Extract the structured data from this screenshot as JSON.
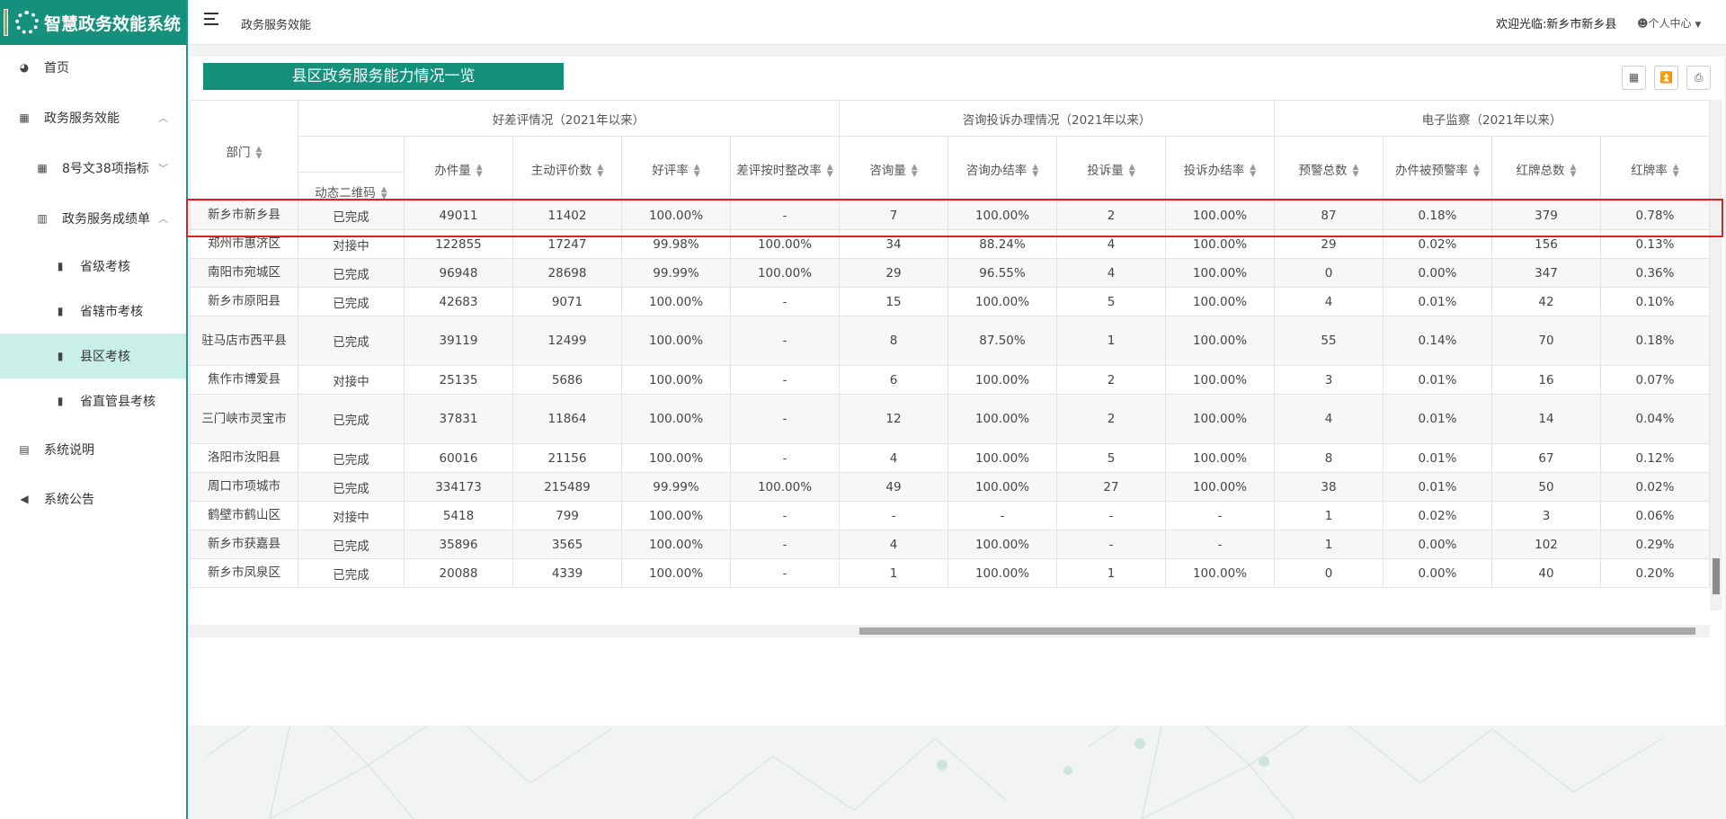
{
  "app": {
    "title": "智慧政务效能系统"
  },
  "topbar": {
    "breadcrumb": "政务服务效能",
    "welcome": "欢迎光临:新乡市新乡县",
    "user_center": "个人中心"
  },
  "sidebar": {
    "items": [
      {
        "label": "首页",
        "icon": "dashboard-icon"
      },
      {
        "label": "政务服务效能",
        "icon": "calendar-icon"
      },
      {
        "label": "8号文38项指标",
        "icon": "calendar-icon"
      },
      {
        "label": "政务服务成绩单",
        "icon": "chart-icon"
      },
      {
        "label": "省级考核",
        "icon": "bar-chart-icon"
      },
      {
        "label": "省辖市考核",
        "icon": "bar-chart-icon"
      },
      {
        "label": "县区考核",
        "icon": "bar-chart-icon"
      },
      {
        "label": "省直管县考核",
        "icon": "bar-chart-icon"
      },
      {
        "label": "系统说明",
        "icon": "document-icon"
      },
      {
        "label": "系统公告",
        "icon": "volume-icon"
      }
    ]
  },
  "panel": {
    "title": "县区政务服务能力情况一览"
  },
  "table": {
    "groups": [
      "好差评情况（2021年以来）",
      "咨询投诉办理情况（2021年以来）",
      "电子监察（2021年以来）"
    ],
    "columns": [
      "部门",
      "动态二维码",
      "办件量",
      "主动评价数",
      "好评率",
      "差评按时整改率",
      "咨询量",
      "咨询办结率",
      "投诉量",
      "投诉办结率",
      "预警总数",
      "办件被预警率",
      "红牌总数",
      "红牌率"
    ],
    "rows": [
      [
        "新乡市新乡县",
        "已完成",
        "49011",
        "11402",
        "100.00%",
        "-",
        "7",
        "100.00%",
        "2",
        "100.00%",
        "87",
        "0.18%",
        "379",
        "0.78%"
      ],
      [
        "郑州市惠济区",
        "对接中",
        "122855",
        "17247",
        "99.98%",
        "100.00%",
        "34",
        "88.24%",
        "4",
        "100.00%",
        "29",
        "0.02%",
        "156",
        "0.13%"
      ],
      [
        "南阳市宛城区",
        "已完成",
        "96948",
        "28698",
        "99.99%",
        "100.00%",
        "29",
        "96.55%",
        "4",
        "100.00%",
        "0",
        "0.00%",
        "347",
        "0.36%"
      ],
      [
        "新乡市原阳县",
        "已完成",
        "42683",
        "9071",
        "100.00%",
        "-",
        "15",
        "100.00%",
        "5",
        "100.00%",
        "4",
        "0.01%",
        "42",
        "0.10%"
      ],
      [
        "驻马店市西平县",
        "已完成",
        "39119",
        "12499",
        "100.00%",
        "-",
        "8",
        "87.50%",
        "1",
        "100.00%",
        "55",
        "0.14%",
        "70",
        "0.18%"
      ],
      [
        "焦作市博爱县",
        "对接中",
        "25135",
        "5686",
        "100.00%",
        "-",
        "6",
        "100.00%",
        "2",
        "100.00%",
        "3",
        "0.01%",
        "16",
        "0.07%"
      ],
      [
        "三门峡市灵宝市",
        "已完成",
        "37831",
        "11864",
        "100.00%",
        "-",
        "12",
        "100.00%",
        "2",
        "100.00%",
        "4",
        "0.01%",
        "14",
        "0.04%"
      ],
      [
        "洛阳市汝阳县",
        "已完成",
        "60016",
        "21156",
        "100.00%",
        "-",
        "4",
        "100.00%",
        "5",
        "100.00%",
        "8",
        "0.01%",
        "67",
        "0.12%"
      ],
      [
        "周口市项城市",
        "已完成",
        "334173",
        "215489",
        "99.99%",
        "100.00%",
        "49",
        "100.00%",
        "27",
        "100.00%",
        "38",
        "0.01%",
        "50",
        "0.02%"
      ],
      [
        "鹤壁市鹤山区",
        "对接中",
        "5418",
        "799",
        "100.00%",
        "-",
        "-",
        "-",
        "-",
        "-",
        "1",
        "0.02%",
        "3",
        "0.06%"
      ],
      [
        "新乡市获嘉县",
        "已完成",
        "35896",
        "3565",
        "100.00%",
        "-",
        "4",
        "100.00%",
        "-",
        "-",
        "1",
        "0.00%",
        "102",
        "0.29%"
      ],
      [
        "新乡市凤泉区",
        "已完成",
        "20088",
        "4339",
        "100.00%",
        "-",
        "1",
        "100.00%",
        "1",
        "100.00%",
        "0",
        "0.00%",
        "40",
        "0.20%"
      ]
    ]
  },
  "colors": {
    "brand": "#15907c",
    "active_bg": "#c9efe7",
    "highlight": "#e02020"
  }
}
